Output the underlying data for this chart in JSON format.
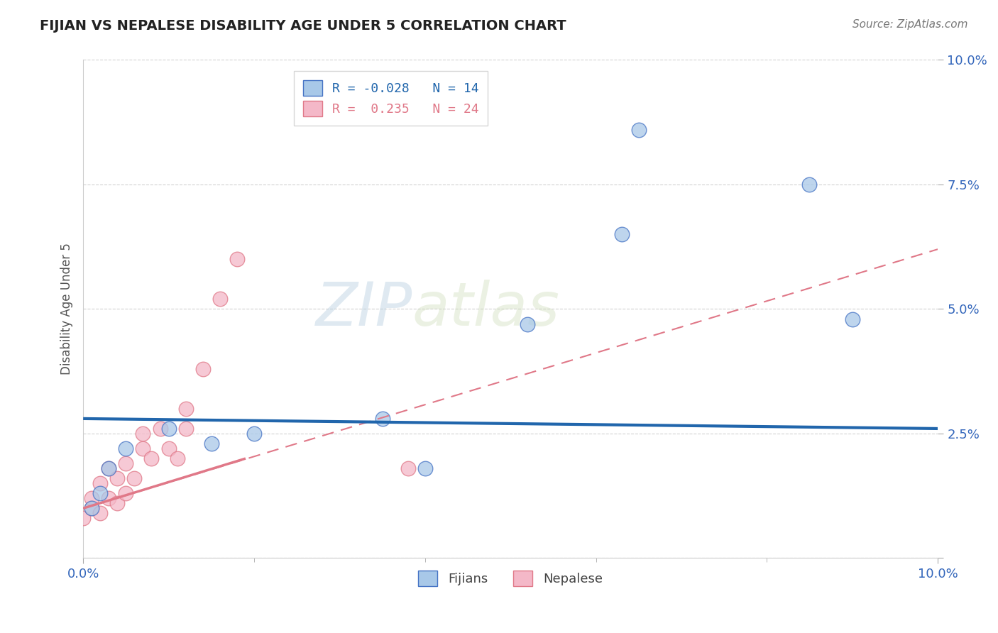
{
  "title": "FIJIAN VS NEPALESE DISABILITY AGE UNDER 5 CORRELATION CHART",
  "source": "Source: ZipAtlas.com",
  "ylabel": "Disability Age Under 5",
  "xlim": [
    0,
    0.1
  ],
  "ylim": [
    0,
    0.1
  ],
  "xticks": [
    0.0,
    0.1
  ],
  "xtick_labels": [
    "0.0%",
    "10.0%"
  ],
  "yticks": [
    0.0,
    0.025,
    0.05,
    0.075,
    0.1
  ],
  "ytick_labels": [
    "",
    "2.5%",
    "5.0%",
    "7.5%",
    "10.0%"
  ],
  "fijian_color": "#a8c8e8",
  "nepalese_color": "#f4b8c8",
  "fijian_edge_color": "#4472c4",
  "nepalese_edge_color": "#e07888",
  "fijian_line_color": "#2166ac",
  "nepalese_line_color": "#e07888",
  "fijian_R": -0.028,
  "fijian_N": 14,
  "nepalese_R": 0.235,
  "nepalese_N": 24,
  "fijian_x": [
    0.001,
    0.002,
    0.003,
    0.005,
    0.01,
    0.015,
    0.02,
    0.035,
    0.04,
    0.052,
    0.063,
    0.085,
    0.065,
    0.09
  ],
  "fijian_y": [
    0.01,
    0.013,
    0.018,
    0.022,
    0.026,
    0.023,
    0.025,
    0.028,
    0.018,
    0.047,
    0.065,
    0.075,
    0.086,
    0.048
  ],
  "nepalese_x": [
    0.0,
    0.001,
    0.001,
    0.002,
    0.002,
    0.003,
    0.003,
    0.004,
    0.004,
    0.005,
    0.005,
    0.006,
    0.007,
    0.007,
    0.008,
    0.009,
    0.01,
    0.011,
    0.012,
    0.012,
    0.014,
    0.016,
    0.018,
    0.038
  ],
  "nepalese_y": [
    0.008,
    0.01,
    0.012,
    0.009,
    0.015,
    0.012,
    0.018,
    0.011,
    0.016,
    0.013,
    0.019,
    0.016,
    0.022,
    0.025,
    0.02,
    0.026,
    0.022,
    0.02,
    0.026,
    0.03,
    0.038,
    0.052,
    0.06,
    0.018
  ],
  "fijian_line_x": [
    0.0,
    0.1
  ],
  "fijian_line_y": [
    0.028,
    0.026
  ],
  "nepalese_line_x": [
    0.0,
    0.1
  ],
  "nepalese_line_y": [
    0.01,
    0.062
  ],
  "watermark_zip": "ZIP",
  "watermark_atlas": "atlas",
  "background_color": "#ffffff",
  "grid_color": "#cccccc"
}
